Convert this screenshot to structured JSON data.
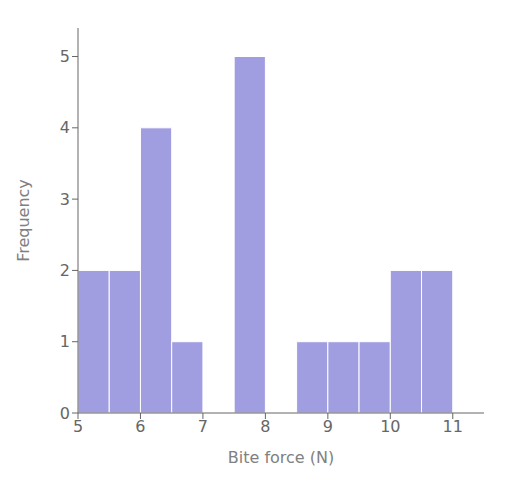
{
  "chart_data": {
    "type": "histogram",
    "bins": [
      5.0,
      5.5,
      6.0,
      6.5,
      7.0,
      7.5,
      8.0,
      8.5,
      9.0,
      9.5,
      10.0,
      10.5,
      11.0,
      11.5
    ],
    "counts": [
      2,
      2,
      4,
      1,
      0,
      5,
      0,
      1,
      1,
      1,
      2,
      2,
      0
    ],
    "xlabel": "Bite force (N)",
    "ylabel": "Frequency",
    "xlim": [
      5.0,
      11.5
    ],
    "ylim": [
      0,
      5.4
    ],
    "xticks": [
      5,
      6,
      7,
      8,
      9,
      10,
      11
    ],
    "yticks": [
      0,
      1,
      2,
      3,
      4,
      5
    ]
  }
}
